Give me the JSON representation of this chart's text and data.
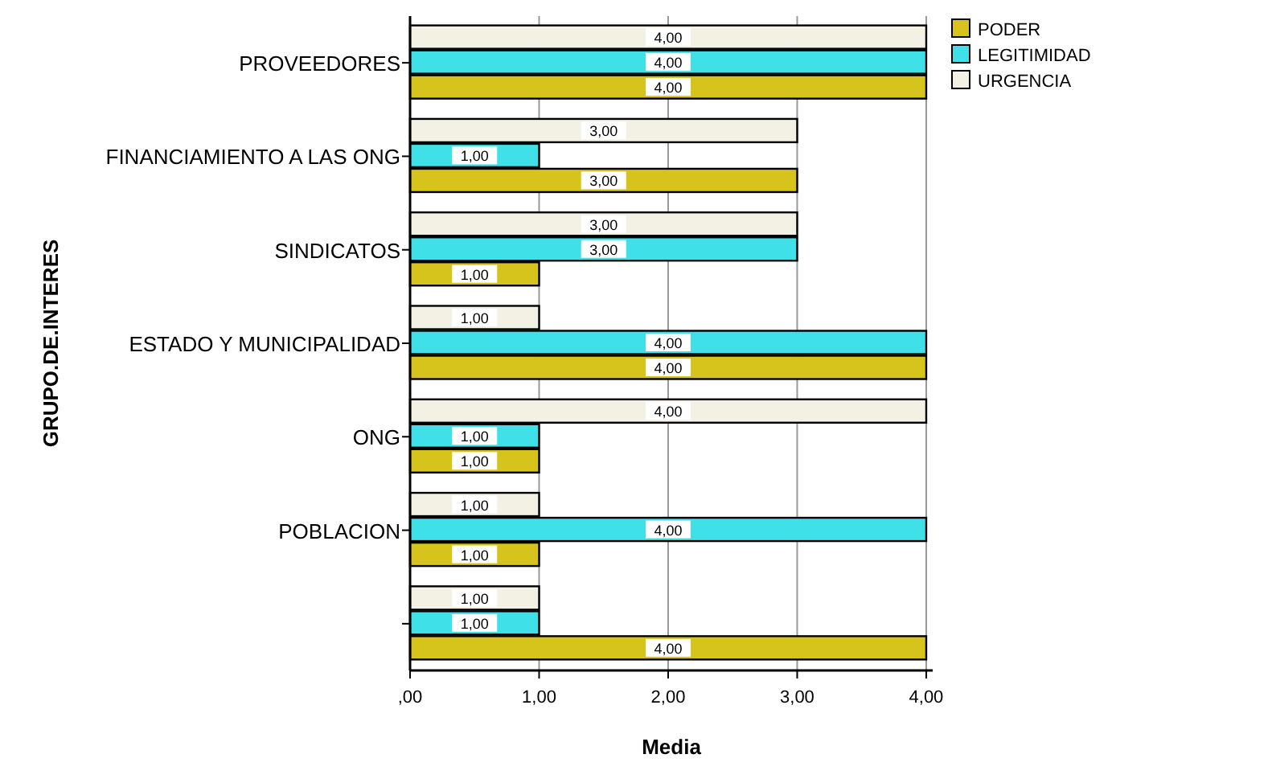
{
  "chart_data": {
    "type": "bar",
    "orientation": "horizontal",
    "xlabel": "Media",
    "ylabel": "GRUPO.DE.INTERES",
    "categories": [
      "PROVEEDORES",
      "FINANCIAMIENTO A LAS ONG",
      "SINDICATOS",
      "ESTADO Y MUNICIPALIDAD",
      "ONG",
      "POBLACION",
      null
    ],
    "series": [
      {
        "name": "PODER",
        "color": "#d6c41c",
        "values": [
          4,
          3,
          1,
          4,
          1,
          1,
          4
        ],
        "value_labels": [
          "4,00",
          "3,00",
          "1,00",
          "4,00",
          "1,00",
          "1,00",
          "4,00"
        ]
      },
      {
        "name": "LEGITIMIDAD",
        "color": "#40e0e8",
        "values": [
          4,
          1,
          3,
          4,
          1,
          4,
          1
        ],
        "value_labels": [
          "4,00",
          "1,00",
          "3,00",
          "4,00",
          "1,00",
          "4,00",
          "1,00"
        ]
      },
      {
        "name": "URGENCIA",
        "color": "#f3f0e4",
        "values": [
          4,
          3,
          3,
          1,
          4,
          1,
          1
        ],
        "value_labels": [
          "4,00",
          "3,00",
          "3,00",
          "1,00",
          "4,00",
          "1,00",
          "1,00"
        ]
      }
    ],
    "xlim": [
      0,
      4.05
    ],
    "xticks": [
      {
        "value": 0,
        "label": ",00"
      },
      {
        "value": 1,
        "label": "1,00"
      },
      {
        "value": 2,
        "label": "2,00"
      },
      {
        "value": 3,
        "label": "3,00"
      },
      {
        "value": 4,
        "label": "4,00"
      }
    ],
    "grid": "x",
    "legend": "top right"
  }
}
